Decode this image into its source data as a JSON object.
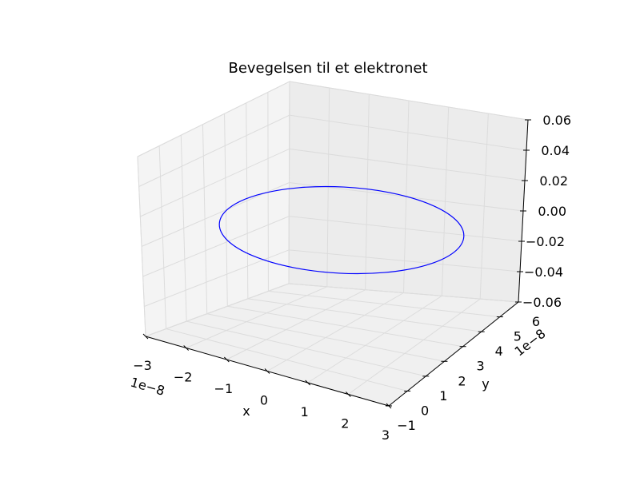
{
  "chart_data": {
    "type": "line",
    "projection": "3d",
    "title": "Bevegelsen til et elektronet",
    "xlabel": "x",
    "ylabel": "y",
    "zlabel": "",
    "x_offset_label": "1e−8",
    "y_offset_label": "1e−8",
    "xlim": [
      -3,
      3
    ],
    "ylim": [
      -1,
      6
    ],
    "zlim": [
      -0.06,
      0.06
    ],
    "x_ticks": [
      "−3",
      "−2",
      "−1",
      "0",
      "1",
      "2",
      "3"
    ],
    "y_ticks": [
      "−1",
      "0",
      "1",
      "2",
      "3",
      "4",
      "5",
      "6"
    ],
    "z_ticks": [
      "−0.06",
      "−0.04",
      "−0.02",
      "0.00",
      "0.02",
      "0.04",
      "0.06"
    ],
    "grid": true,
    "series": [
      {
        "color": "#0000ff",
        "shape": "circle",
        "center": {
          "x": 0,
          "y": 2.75,
          "z": 0
        },
        "radius": 2.75,
        "note_units": "x and y in units of 1e-8"
      }
    ]
  }
}
